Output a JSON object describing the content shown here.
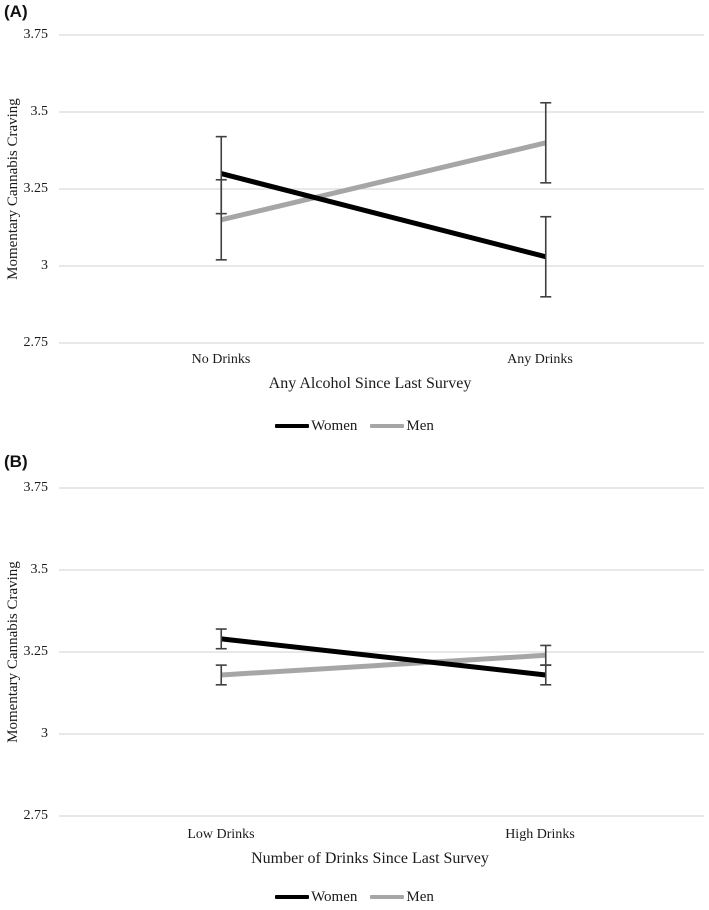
{
  "colors": {
    "gridline": "#d9d9d9",
    "error_bar": "#404040",
    "women_line": "#000000",
    "men_line": "#a6a6a6"
  },
  "chart_data": [
    {
      "type": "line",
      "panel_label": "(A)",
      "xlabel": "Any Alcohol Since Last Survey",
      "ylabel": "Momentary Cannabis Craving",
      "categories": [
        "No Drinks",
        "Any Drinks"
      ],
      "ylim": [
        2.75,
        3.75
      ],
      "yticks": [
        "3.75",
        "3.5",
        "3.25",
        "3",
        "2.75"
      ],
      "grid": true,
      "legend_position": "bottom",
      "series": [
        {
          "name": "Women",
          "color": "#000000",
          "values": [
            3.3,
            3.03
          ],
          "ci_low": [
            3.17,
            2.9
          ],
          "ci_high": [
            3.42,
            3.16
          ]
        },
        {
          "name": "Men",
          "color": "#a6a6a6",
          "values": [
            3.15,
            3.4
          ],
          "ci_low": [
            3.02,
            3.27
          ],
          "ci_high": [
            3.28,
            3.53
          ]
        }
      ]
    },
    {
      "type": "line",
      "panel_label": "(B)",
      "xlabel": "Number of Drinks Since Last Survey",
      "ylabel": "Momentary Cannabis Craving",
      "categories": [
        "Low Drinks",
        "High Drinks"
      ],
      "ylim": [
        2.75,
        3.75
      ],
      "yticks": [
        "3.75",
        "3.5",
        "3.25",
        "3",
        "2.75"
      ],
      "grid": true,
      "legend_position": "bottom",
      "series": [
        {
          "name": "Women",
          "color": "#000000",
          "values": [
            3.29,
            3.18
          ],
          "ci_low": [
            3.26,
            3.15
          ],
          "ci_high": [
            3.32,
            3.21
          ]
        },
        {
          "name": "Men",
          "color": "#a6a6a6",
          "values": [
            3.18,
            3.24
          ],
          "ci_low": [
            3.15,
            3.21
          ],
          "ci_high": [
            3.21,
            3.27
          ]
        }
      ]
    }
  ]
}
